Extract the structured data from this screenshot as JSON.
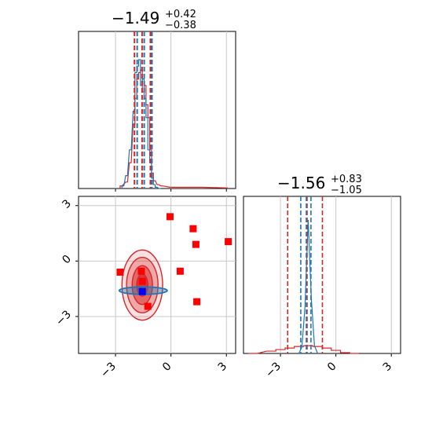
{
  "chart_data": {
    "type": "corner",
    "colors": {
      "blue": "#1f77b4",
      "red": "#d62728",
      "marker_red": "#ff0000",
      "marker_blue": "#0000ff",
      "grid": "#c8c8c8"
    },
    "axis": {
      "range": [
        -5,
        3.5
      ],
      "ticks": [
        -3,
        0,
        3
      ],
      "tick_labels": [
        "−3",
        "0",
        "3"
      ]
    },
    "titles": [
      {
        "value": "−1.49",
        "sup": "+0.42",
        "sub": "−0.38"
      },
      {
        "value": "−1.56",
        "sup": "+0.83",
        "sub": "−1.05"
      }
    ],
    "grid": true,
    "diag1": {
      "blue_quantiles": [
        -1.87,
        -1.49,
        -1.07
      ],
      "red_quantiles": [
        -1.93,
        -1.52,
        -1.07
      ],
      "blue_hist": {
        "x": [
          -2.6,
          -2.4,
          -2.2,
          -2.0,
          -1.9,
          -1.8,
          -1.7,
          -1.6,
          -1.5,
          -1.4,
          -1.3,
          -1.2,
          -1.1,
          -1.0,
          -0.9,
          -0.8,
          -0.6
        ],
        "y": [
          0.02,
          0.1,
          0.3,
          0.6,
          0.9,
          0.95,
          1.0,
          0.8,
          0.85,
          0.7,
          0.55,
          0.3,
          0.2,
          0.08,
          0.03,
          0.01,
          0.0
        ]
      },
      "red_hist": {
        "x": [
          -2.7,
          -2.4,
          -2.2,
          -2.0,
          -1.9,
          -1.8,
          -1.7,
          -1.6,
          -1.5,
          -1.4,
          -1.3,
          -1.2,
          -1.1,
          -1.0,
          -0.9,
          -0.7,
          -0.5,
          0.0,
          0.7,
          1.6,
          3.0
        ],
        "y": [
          0.02,
          0.05,
          0.2,
          0.5,
          0.7,
          0.85,
          0.9,
          0.92,
          0.75,
          0.8,
          0.65,
          0.55,
          0.3,
          0.12,
          0.06,
          0.03,
          0.02,
          0.01,
          0.01,
          0.01,
          0.005
        ]
      }
    },
    "diag2": {
      "blue_quantiles": [
        -1.9,
        -1.6,
        -1.35
      ],
      "red_quantiles": [
        -2.61,
        -1.56,
        -0.73
      ],
      "blue_peak": [
        -1.5,
        1.0
      ],
      "red_curve": {
        "x": [
          -4.5,
          -3.5,
          -3.0,
          -2.5,
          -2.0,
          -1.5,
          -1.0,
          -0.5,
          0.0,
          0.5,
          1.0
        ],
        "y": [
          0.0,
          0.03,
          0.05,
          0.07,
          0.09,
          0.1,
          0.09,
          0.07,
          0.04,
          0.01,
          0.0
        ]
      }
    },
    "scatter": {
      "blue_ellipse": {
        "cx": -1.5,
        "cy": -1.6,
        "rx": 1.3,
        "ry": 0.2
      },
      "red_contours": [
        {
          "cx": -1.55,
          "cy": -1.3,
          "rx": 1.1,
          "ry": 1.9
        },
        {
          "cx": -1.55,
          "cy": -1.3,
          "rx": 0.85,
          "ry": 1.5
        },
        {
          "cx": -1.55,
          "cy": -1.3,
          "rx": 0.55,
          "ry": 1.05
        },
        {
          "cx": -1.55,
          "cy": -1.3,
          "rx": 0.3,
          "ry": 0.6
        }
      ],
      "red_points": [
        {
          "x": -0.05,
          "y": 2.4
        },
        {
          "x": 1.2,
          "y": 1.75
        },
        {
          "x": 1.35,
          "y": 0.9
        },
        {
          "x": 3.1,
          "y": 1.05
        },
        {
          "x": -2.75,
          "y": -0.6
        },
        {
          "x": -1.6,
          "y": -0.55
        },
        {
          "x": 0.5,
          "y": -0.55
        },
        {
          "x": 1.4,
          "y": -2.2
        },
        {
          "x": -1.25,
          "y": -2.45
        },
        {
          "x": -1.55,
          "y": -1.1
        }
      ],
      "blue_point": {
        "x": -1.55,
        "y": -1.65
      }
    }
  }
}
